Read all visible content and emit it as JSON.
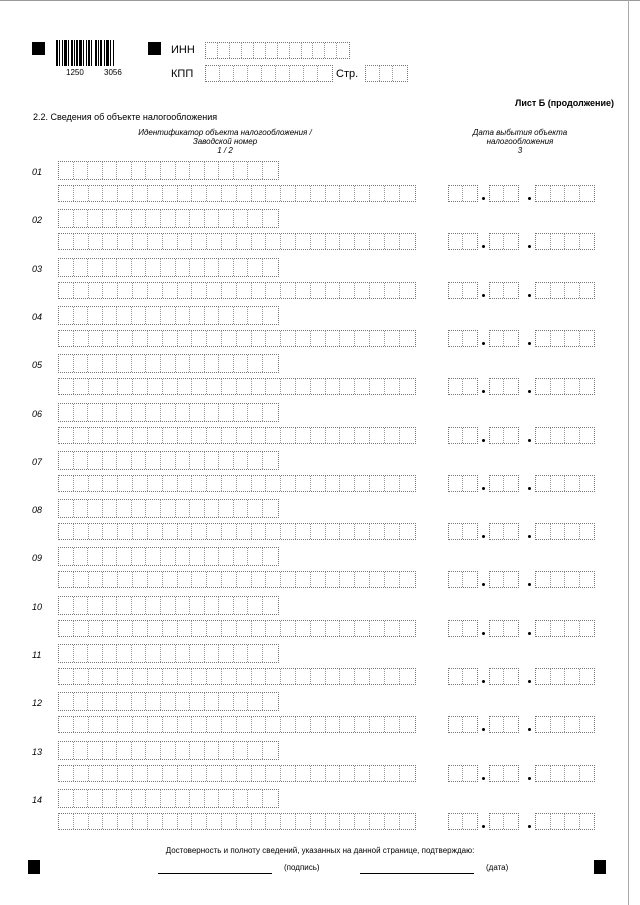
{
  "header": {
    "barcode_numbers": [
      "1250",
      "3056"
    ],
    "inn_label": "ИНН",
    "kpp_label": "КПП",
    "page_label": "Стр."
  },
  "sheet_title": "Лист Б (продолжение)",
  "section_title": "2.2. Сведения об объекте налогообложения",
  "columns": {
    "identifier": [
      "Идентификатор объекта налогообложения /",
      "Заводской номер",
      "1 / 2"
    ],
    "date": [
      "Дата выбытия объекта",
      "налогообложения",
      "3"
    ]
  },
  "rows": [
    "01",
    "02",
    "03",
    "04",
    "05",
    "06",
    "07",
    "08",
    "09",
    "10",
    "11",
    "12",
    "13",
    "14"
  ],
  "footer": {
    "confirm_text": "Достоверность и полноту сведений, указанных на данной странице, подтверждаю:",
    "signature_label": "(подпись)",
    "date_label": "(дата)"
  }
}
